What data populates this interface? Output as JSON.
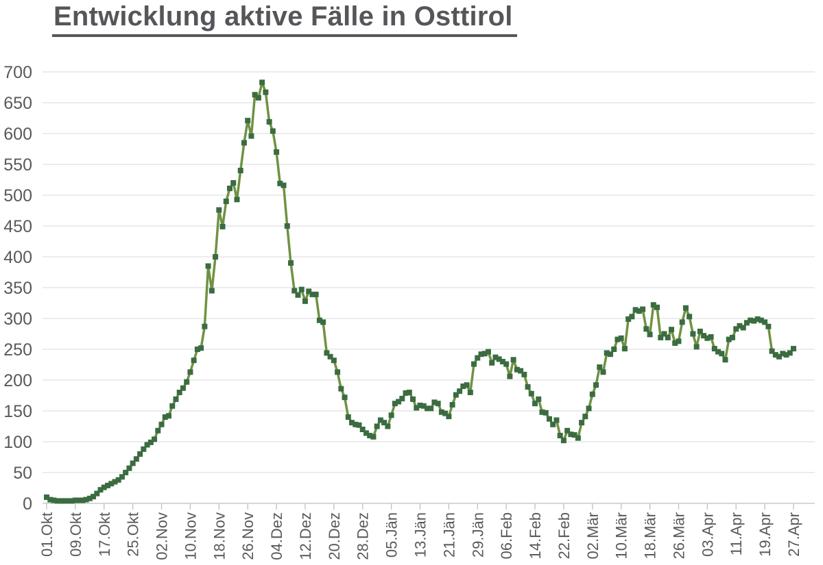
{
  "title": "Entwicklung aktive Fälle in Osttirol",
  "chart_data": {
    "type": "line",
    "title": "Entwicklung aktive Fälle in Osttirol",
    "xlabel": "",
    "ylabel": "",
    "ylim": [
      0,
      700
    ],
    "y_ticks": [
      0,
      50,
      100,
      150,
      200,
      250,
      300,
      350,
      400,
      450,
      500,
      550,
      600,
      650,
      700
    ],
    "grid": "horizontal",
    "legend": "none",
    "marker": "square",
    "x_unit": "day",
    "x_tick_interval_days": 8,
    "x_tick_labels": [
      "01.Okt",
      "09.Okt",
      "17.Okt",
      "25.Okt",
      "02.Nov",
      "10.Nov",
      "18.Nov",
      "26.Nov",
      "04.Dez",
      "12.Dez",
      "20.Dez",
      "28.Dez",
      "05.Jän",
      "13.Jän",
      "21.Jän",
      "29.Jän",
      "06.Feb",
      "14.Feb",
      "22.Feb",
      "02.Mär",
      "10.Mär",
      "18.Mär",
      "26.Mär",
      "03.Apr",
      "11.Apr",
      "19.Apr",
      "27.Apr"
    ],
    "line_color": "#6F9242",
    "marker_color": "#3B6C41",
    "grid_color": "#D9D9D9",
    "axis_color": "#BFBFBF",
    "text_color": "#595959",
    "title_color": "#55565A",
    "values": [
      10,
      6,
      5,
      4,
      4,
      4,
      4,
      4,
      5,
      5,
      5,
      6,
      8,
      11,
      16,
      22,
      26,
      29,
      32,
      35,
      38,
      43,
      50,
      57,
      65,
      72,
      80,
      88,
      95,
      99,
      104,
      118,
      128,
      140,
      142,
      158,
      169,
      180,
      187,
      197,
      213,
      232,
      250,
      252,
      287,
      385,
      345,
      400,
      476,
      449,
      490,
      511,
      520,
      493,
      540,
      585,
      621,
      596,
      663,
      658,
      683,
      667,
      619,
      604,
      570,
      519,
      516,
      450,
      390,
      345,
      338,
      347,
      328,
      344,
      339,
      339,
      297,
      294,
      244,
      238,
      232,
      213,
      186,
      172,
      140,
      131,
      128,
      127,
      120,
      114,
      110,
      108,
      125,
      135,
      131,
      125,
      143,
      162,
      165,
      170,
      179,
      180,
      169,
      155,
      159,
      158,
      154,
      154,
      164,
      162,
      148,
      146,
      141,
      160,
      176,
      182,
      190,
      192,
      180,
      226,
      236,
      242,
      243,
      246,
      228,
      237,
      234,
      230,
      226,
      206,
      233,
      217,
      215,
      209,
      189,
      178,
      162,
      169,
      148,
      147,
      137,
      128,
      135,
      110,
      102,
      118,
      112,
      111,
      106,
      131,
      141,
      154,
      177,
      192,
      221,
      213,
      244,
      242,
      250,
      266,
      268,
      251,
      299,
      303,
      314,
      312,
      315,
      283,
      274,
      322,
      318,
      269,
      275,
      269,
      282,
      260,
      263,
      294,
      317,
      303,
      275,
      254,
      279,
      272,
      268,
      270,
      251,
      246,
      243,
      233,
      266,
      269,
      283,
      288,
      285,
      293,
      297,
      296,
      299,
      297,
      294,
      287,
      247,
      241,
      238,
      243,
      241,
      244,
      251
    ]
  }
}
